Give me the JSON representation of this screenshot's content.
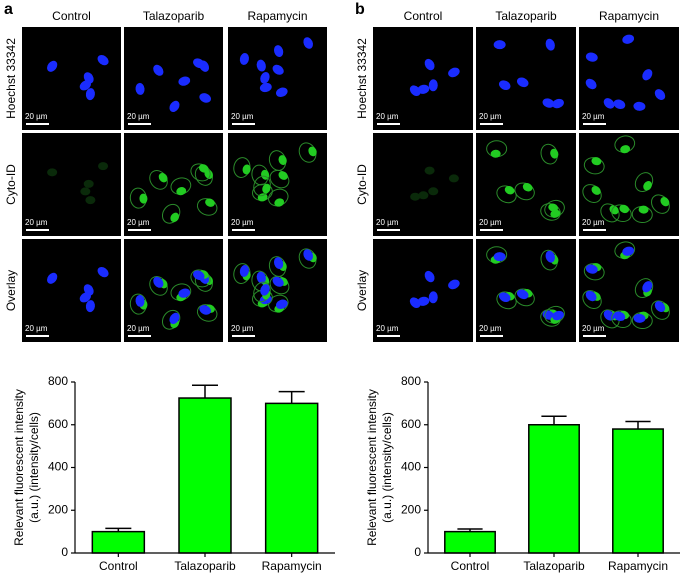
{
  "panels": [
    {
      "label": "a",
      "columns": [
        "Control",
        "Talazoparib",
        "Rapamycin"
      ],
      "rows": [
        "Hoechst 33342",
        "Cyto-ID",
        "Overlay"
      ],
      "scale_bar": "20 µm"
    },
    {
      "label": "b",
      "columns": [
        "Control",
        "Talazoparib",
        "Rapamycin"
      ],
      "rows": [
        "Hoechst 33342",
        "Cyto-ID",
        "Overlay"
      ],
      "scale_bar": "20 µm"
    }
  ],
  "chart_data": [
    {
      "type": "bar",
      "ylabel": [
        "Relevant fluorescent intensity",
        "(a.u.) (intensity/cells)"
      ],
      "categories": [
        "Control",
        "Talazoparib",
        "Rapamycin"
      ],
      "values": [
        100,
        725,
        700
      ],
      "errors": [
        15,
        60,
        55
      ],
      "color": "#00ff00",
      "ylim": [
        0,
        800
      ],
      "yticks": [
        0,
        200,
        400,
        600,
        800
      ]
    },
    {
      "type": "bar",
      "ylabel": [
        "Relevant fluorescent intensity",
        "(a.u.) (intensity/cells)"
      ],
      "categories": [
        "Control",
        "Talazoparib",
        "Rapamycin"
      ],
      "values": [
        100,
        600,
        580
      ],
      "errors": [
        12,
        40,
        35
      ],
      "color": "#00ff00",
      "ylim": [
        0,
        800
      ],
      "yticks": [
        0,
        200,
        400,
        600,
        800
      ]
    }
  ]
}
